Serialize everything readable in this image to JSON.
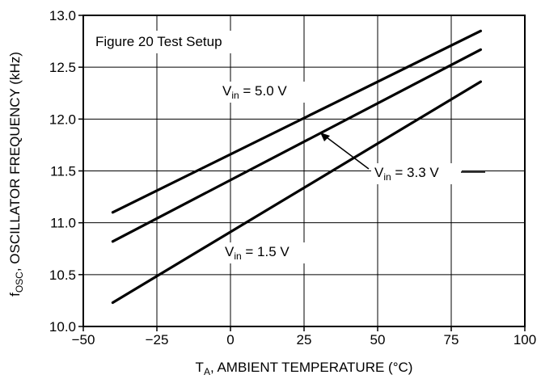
{
  "chart_data": {
    "type": "line",
    "xlabel": {
      "main": "T",
      "sub": "A",
      "rest": ", AMBIENT TEMPERATURE (°C)"
    },
    "ylabel": {
      "main": "f",
      "sub": "OSC",
      "rest": ", OSCILLATOR FREQUENCY (kHz)"
    },
    "xlim": [
      -50,
      100
    ],
    "ylim": [
      10.0,
      13.0
    ],
    "xticks": [
      "−50",
      "−25",
      "0",
      "25",
      "50",
      "75",
      "100"
    ],
    "yticks": [
      "10.0",
      "10.5",
      "11.0",
      "11.5",
      "12.0",
      "12.5",
      "13.0"
    ],
    "grid": true,
    "annotation": "Figure 20 Test Setup",
    "series": [
      {
        "name": "Vin = 5.0 V",
        "label": {
          "v": "V",
          "sub": "in",
          "rest": " = 5.0 V"
        },
        "x": [
          -40,
          85
        ],
        "y": [
          11.1,
          12.85
        ]
      },
      {
        "name": "Vin = 3.3 V",
        "label": {
          "v": "V",
          "sub": "in",
          "rest": " = 3.3 V"
        },
        "x": [
          -40,
          85
        ],
        "y": [
          10.82,
          12.67
        ]
      },
      {
        "name": "Vin = 1.5 V",
        "label": {
          "v": "V",
          "sub": "in",
          "rest": " = 1.5 V"
        },
        "x": [
          -40,
          85
        ],
        "y": [
          10.23,
          12.36
        ]
      }
    ]
  }
}
